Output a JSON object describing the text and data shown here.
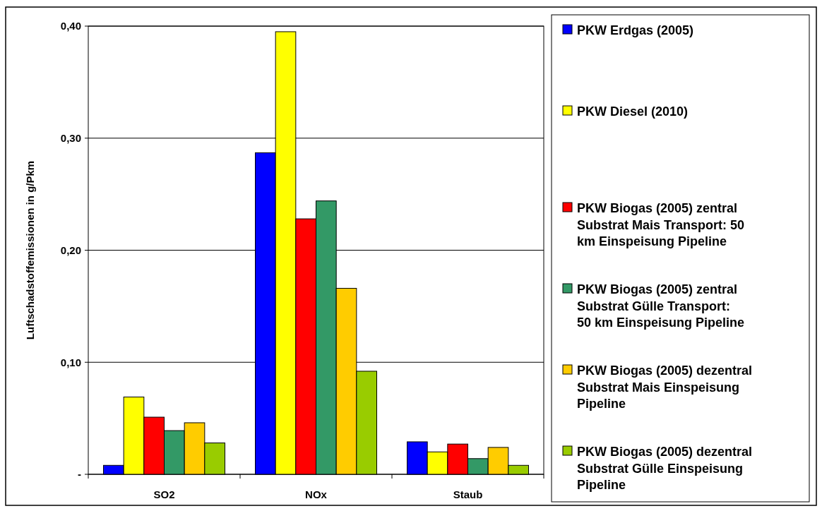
{
  "chart_data": {
    "type": "bar",
    "ylabel": "Luftschadstoffemissionen in g/Pkm",
    "categories": [
      "SO2",
      "NOx",
      "Staub"
    ],
    "series": [
      {
        "name": "PKW Erdgas (2005)",
        "color": "#0000ff",
        "values": [
          0.008,
          0.287,
          0.029
        ]
      },
      {
        "name": "PKW Diesel (2010)",
        "color": "#ffff00",
        "values": [
          0.069,
          0.395,
          0.02
        ]
      },
      {
        "name": "PKW Biogas (2005) zentral Substrat Mais Transport: 50 km Einspeisung Pipeline",
        "color": "#ff0000",
        "values": [
          0.051,
          0.228,
          0.027
        ]
      },
      {
        "name": "PKW Biogas (2005) zentral Substrat Gülle Transport: 50 km Einspeisung Pipeline",
        "color": "#339966",
        "values": [
          0.039,
          0.244,
          0.014
        ]
      },
      {
        "name": "PKW Biogas (2005) dezentral Substrat Mais Einspeisung Pipeline",
        "color": "#ffcc00",
        "values": [
          0.046,
          0.166,
          0.024
        ]
      },
      {
        "name": "PKW Biogas (2005) dezentral Substrat Gülle Einspeisung Pipeline",
        "color": "#99cc00",
        "values": [
          0.028,
          0.092,
          0.008
        ]
      }
    ],
    "ylim": [
      0,
      0.4
    ],
    "yticks": [
      {
        "value": 0,
        "label": "-"
      },
      {
        "value": 0.1,
        "label": "0,10"
      },
      {
        "value": 0.2,
        "label": "0,20"
      },
      {
        "value": 0.3,
        "label": "0,30"
      },
      {
        "value": 0.4,
        "label": "0,40"
      }
    ],
    "grid": "y",
    "legend": "right"
  }
}
